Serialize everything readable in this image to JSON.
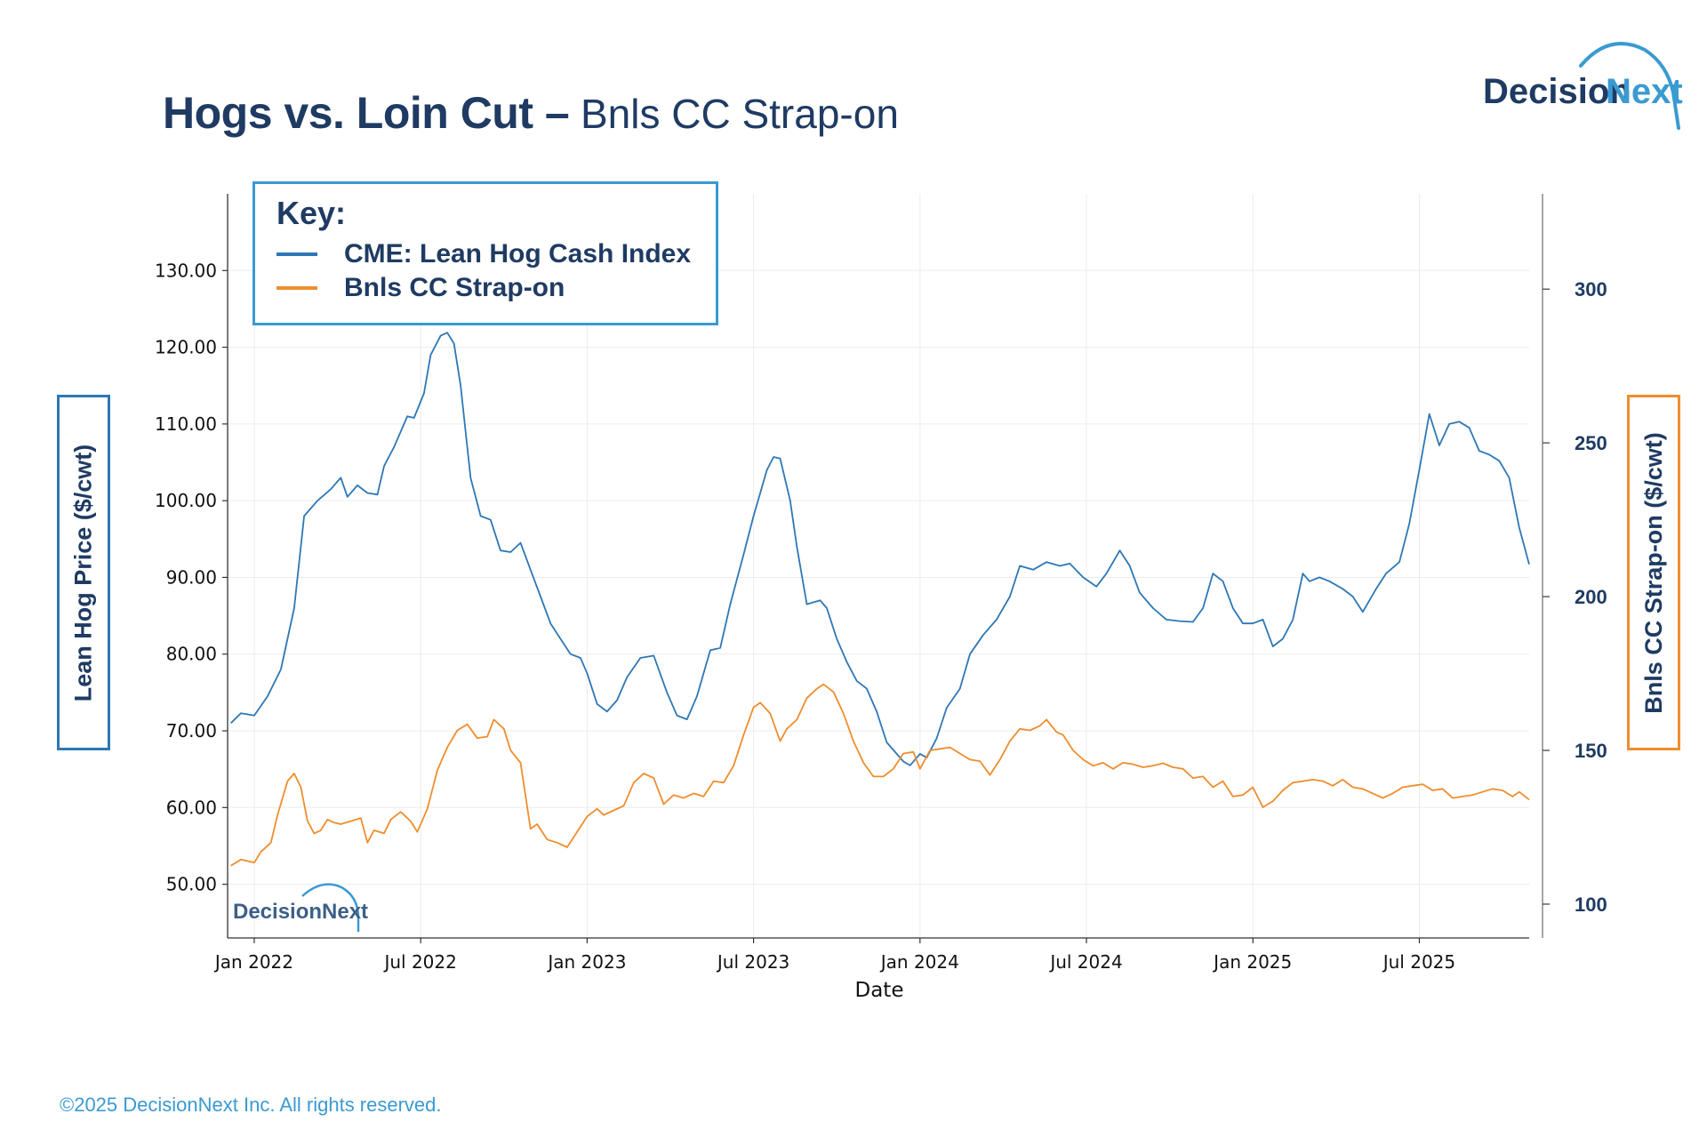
{
  "header": {
    "title_bold": "Hogs vs. Loin Cut –",
    "title_light": " Bnls CC Strap-on",
    "logo_text_dark": "Decision",
    "logo_text_light": "Next"
  },
  "footer": {
    "copyright": "©2025 DecisionNext Inc. All rights reserved."
  },
  "colors": {
    "hog": "#2e77b5",
    "loin": "#ef8d2e",
    "navy": "#1f3b63",
    "accent": "#3a9ad1"
  },
  "chart_data": {
    "type": "line",
    "xlabel": "Date",
    "ylabel_left": "Lean Hog Price  ($/cwt)",
    "ylabel_right": "Bnls CC Strap-on ($/cwt)",
    "x_range": [
      2021.92,
      2025.83
    ],
    "ylim_left": [
      43,
      140
    ],
    "ylim_right": [
      89,
      331
    ],
    "x_ticks": [
      {
        "label": "Jan 2022",
        "x": 2022.0
      },
      {
        "label": "Jul 2022",
        "x": 2022.5
      },
      {
        "label": "Jan 2023",
        "x": 2023.0
      },
      {
        "label": "Jul 2023",
        "x": 2023.5
      },
      {
        "label": "Jan 2024",
        "x": 2024.0
      },
      {
        "label": "Jul 2024",
        "x": 2024.5
      },
      {
        "label": "Jan 2025",
        "x": 2025.0
      },
      {
        "label": "Jul 2025",
        "x": 2025.5
      }
    ],
    "left_ticks": [
      "50.00",
      "60.00",
      "70.00",
      "80.00",
      "90.00",
      "100.00",
      "110.00",
      "120.00",
      "130.00"
    ],
    "right_ticks": [
      "100",
      "150",
      "200",
      "250",
      "300"
    ],
    "legend": {
      "title": "Key:",
      "position": "top-left",
      "entries": [
        "CME: Lean Hog Cash Index",
        "Bnls CC Strap-on"
      ]
    },
    "watermark": "DecisionNext",
    "series": [
      {
        "name": "CME: Lean Hog Cash Index",
        "axis": "left",
        "points": [
          [
            2021.93,
            71
          ],
          [
            2021.96,
            72.3
          ],
          [
            2022.0,
            72
          ],
          [
            2022.04,
            74.5
          ],
          [
            2022.08,
            78
          ],
          [
            2022.12,
            86
          ],
          [
            2022.15,
            98
          ],
          [
            2022.19,
            100
          ],
          [
            2022.23,
            101.5
          ],
          [
            2022.26,
            103
          ],
          [
            2022.28,
            100.5
          ],
          [
            2022.31,
            102
          ],
          [
            2022.34,
            101
          ],
          [
            2022.37,
            100.8
          ],
          [
            2022.39,
            104.5
          ],
          [
            2022.42,
            107
          ],
          [
            2022.44,
            109
          ],
          [
            2022.46,
            111
          ],
          [
            2022.48,
            110.8
          ],
          [
            2022.51,
            114
          ],
          [
            2022.53,
            119
          ],
          [
            2022.56,
            121.5
          ],
          [
            2022.58,
            121.9
          ],
          [
            2022.6,
            120.5
          ],
          [
            2022.62,
            115
          ],
          [
            2022.65,
            103
          ],
          [
            2022.68,
            98
          ],
          [
            2022.71,
            97.5
          ],
          [
            2022.74,
            93.5
          ],
          [
            2022.77,
            93.3
          ],
          [
            2022.8,
            94.5
          ],
          [
            2022.83,
            91
          ],
          [
            2022.86,
            87.5
          ],
          [
            2022.89,
            84
          ],
          [
            2022.92,
            82
          ],
          [
            2022.95,
            80
          ],
          [
            2022.98,
            79.5
          ],
          [
            2023.0,
            77.5
          ],
          [
            2023.03,
            73.5
          ],
          [
            2023.06,
            72.5
          ],
          [
            2023.09,
            74
          ],
          [
            2023.12,
            77
          ],
          [
            2023.16,
            79.5
          ],
          [
            2023.2,
            79.8
          ],
          [
            2023.24,
            75
          ],
          [
            2023.27,
            72
          ],
          [
            2023.3,
            71.5
          ],
          [
            2023.33,
            74.5
          ],
          [
            2023.37,
            80.5
          ],
          [
            2023.4,
            80.8
          ],
          [
            2023.43,
            86.5
          ],
          [
            2023.47,
            93
          ],
          [
            2023.5,
            98
          ],
          [
            2023.54,
            104
          ],
          [
            2023.56,
            105.7
          ],
          [
            2023.58,
            105.5
          ],
          [
            2023.61,
            100
          ],
          [
            2023.63,
            94
          ],
          [
            2023.66,
            86.5
          ],
          [
            2023.7,
            87
          ],
          [
            2023.72,
            86
          ],
          [
            2023.75,
            82
          ],
          [
            2023.78,
            79
          ],
          [
            2023.81,
            76.5
          ],
          [
            2023.84,
            75.5
          ],
          [
            2023.87,
            72.5
          ],
          [
            2023.9,
            68.5
          ],
          [
            2023.93,
            67
          ],
          [
            2023.95,
            66
          ],
          [
            2023.97,
            65.5
          ],
          [
            2024.0,
            67
          ],
          [
            2024.02,
            66.5
          ],
          [
            2024.05,
            69
          ],
          [
            2024.08,
            73
          ],
          [
            2024.12,
            75.5
          ],
          [
            2024.15,
            80
          ],
          [
            2024.19,
            82.5
          ],
          [
            2024.23,
            84.5
          ],
          [
            2024.27,
            87.5
          ],
          [
            2024.3,
            91.5
          ],
          [
            2024.34,
            91
          ],
          [
            2024.38,
            92
          ],
          [
            2024.42,
            91.5
          ],
          [
            2024.45,
            91.8
          ],
          [
            2024.49,
            90
          ],
          [
            2024.53,
            88.8
          ],
          [
            2024.56,
            90.5
          ],
          [
            2024.6,
            93.5
          ],
          [
            2024.63,
            91.5
          ],
          [
            2024.66,
            88
          ],
          [
            2024.7,
            86
          ],
          [
            2024.74,
            84.5
          ],
          [
            2024.78,
            84.3
          ],
          [
            2024.82,
            84.2
          ],
          [
            2024.85,
            86
          ],
          [
            2024.88,
            90.5
          ],
          [
            2024.91,
            89.5
          ],
          [
            2024.94,
            86
          ],
          [
            2024.97,
            84
          ],
          [
            2025.0,
            84
          ],
          [
            2025.03,
            84.5
          ],
          [
            2025.06,
            81
          ],
          [
            2025.09,
            82
          ],
          [
            2025.12,
            84.5
          ],
          [
            2025.15,
            90.5
          ],
          [
            2025.17,
            89.5
          ],
          [
            2025.2,
            90
          ],
          [
            2025.23,
            89.5
          ],
          [
            2025.27,
            88.5
          ],
          [
            2025.3,
            87.5
          ],
          [
            2025.33,
            85.5
          ],
          [
            2025.37,
            88.5
          ],
          [
            2025.4,
            90.5
          ],
          [
            2025.44,
            92
          ],
          [
            2025.47,
            97
          ],
          [
            2025.5,
            104
          ],
          [
            2025.53,
            111.3
          ],
          [
            2025.56,
            107.2
          ],
          [
            2025.59,
            110
          ],
          [
            2025.62,
            110.3
          ],
          [
            2025.65,
            109.5
          ],
          [
            2025.68,
            106.5
          ],
          [
            2025.71,
            106
          ],
          [
            2025.74,
            105.2
          ],
          [
            2025.77,
            103
          ],
          [
            2025.8,
            96.5
          ],
          [
            2025.83,
            91.7
          ]
        ]
      },
      {
        "name": "Bnls CC Strap-on",
        "axis": "right",
        "points": [
          [
            2021.93,
            112.5
          ],
          [
            2021.96,
            114.5
          ],
          [
            2022.0,
            113.5
          ],
          [
            2022.02,
            117
          ],
          [
            2022.05,
            120
          ],
          [
            2022.07,
            129
          ],
          [
            2022.1,
            140
          ],
          [
            2022.12,
            142.5
          ],
          [
            2022.14,
            138
          ],
          [
            2022.16,
            127
          ],
          [
            2022.18,
            123
          ],
          [
            2022.2,
            124
          ],
          [
            2022.22,
            127.5
          ],
          [
            2022.24,
            126.5
          ],
          [
            2022.26,
            126
          ],
          [
            2022.29,
            127
          ],
          [
            2022.32,
            128
          ],
          [
            2022.34,
            120
          ],
          [
            2022.36,
            124
          ],
          [
            2022.39,
            123
          ],
          [
            2022.41,
            127.5
          ],
          [
            2022.44,
            130
          ],
          [
            2022.47,
            127
          ],
          [
            2022.49,
            123.5
          ],
          [
            2022.52,
            131
          ],
          [
            2022.55,
            143.5
          ],
          [
            2022.58,
            151
          ],
          [
            2022.61,
            156.5
          ],
          [
            2022.64,
            158.5
          ],
          [
            2022.67,
            154
          ],
          [
            2022.7,
            154.5
          ],
          [
            2022.72,
            160
          ],
          [
            2022.75,
            157
          ],
          [
            2022.77,
            150
          ],
          [
            2022.8,
            146
          ],
          [
            2022.83,
            124.5
          ],
          [
            2022.85,
            126
          ],
          [
            2022.88,
            121
          ],
          [
            2022.91,
            120
          ],
          [
            2022.94,
            118.5
          ],
          [
            2022.97,
            123.5
          ],
          [
            2023.0,
            128.5
          ],
          [
            2023.03,
            131
          ],
          [
            2023.05,
            129
          ],
          [
            2023.08,
            130.5
          ],
          [
            2023.11,
            132
          ],
          [
            2023.14,
            139.5
          ],
          [
            2023.17,
            142.5
          ],
          [
            2023.2,
            141
          ],
          [
            2023.23,
            132.5
          ],
          [
            2023.26,
            135.5
          ],
          [
            2023.29,
            134.5
          ],
          [
            2023.32,
            136
          ],
          [
            2023.35,
            135
          ],
          [
            2023.38,
            140
          ],
          [
            2023.41,
            139.5
          ],
          [
            2023.44,
            145
          ],
          [
            2023.47,
            155
          ],
          [
            2023.5,
            164
          ],
          [
            2023.52,
            165.5
          ],
          [
            2023.55,
            162
          ],
          [
            2023.58,
            153
          ],
          [
            2023.6,
            157
          ],
          [
            2023.63,
            160
          ],
          [
            2023.66,
            167
          ],
          [
            2023.69,
            170
          ],
          [
            2023.71,
            171.5
          ],
          [
            2023.74,
            169
          ],
          [
            2023.77,
            162
          ],
          [
            2023.8,
            153
          ],
          [
            2023.83,
            146
          ],
          [
            2023.86,
            141.5
          ],
          [
            2023.89,
            141.5
          ],
          [
            2023.92,
            144
          ],
          [
            2023.95,
            149
          ],
          [
            2023.98,
            149.5
          ],
          [
            2024.0,
            144
          ],
          [
            2024.03,
            150
          ],
          [
            2024.06,
            150.5
          ],
          [
            2024.09,
            151
          ],
          [
            2024.12,
            149
          ],
          [
            2024.15,
            147
          ],
          [
            2024.18,
            146.5
          ],
          [
            2024.21,
            142
          ],
          [
            2024.24,
            147
          ],
          [
            2024.27,
            153
          ],
          [
            2024.3,
            157
          ],
          [
            2024.33,
            156.5
          ],
          [
            2024.36,
            158
          ],
          [
            2024.38,
            160
          ],
          [
            2024.41,
            156
          ],
          [
            2024.43,
            155
          ],
          [
            2024.46,
            150
          ],
          [
            2024.49,
            147
          ],
          [
            2024.52,
            145
          ],
          [
            2024.55,
            146
          ],
          [
            2024.58,
            144
          ],
          [
            2024.61,
            146
          ],
          [
            2024.64,
            145.5
          ],
          [
            2024.67,
            144.5
          ],
          [
            2024.7,
            145
          ],
          [
            2024.73,
            145.8
          ],
          [
            2024.76,
            144.5
          ],
          [
            2024.79,
            144
          ],
          [
            2024.82,
            141
          ],
          [
            2024.85,
            141.5
          ],
          [
            2024.88,
            138
          ],
          [
            2024.91,
            140
          ],
          [
            2024.94,
            135
          ],
          [
            2024.97,
            135.5
          ],
          [
            2025.0,
            138
          ],
          [
            2025.03,
            131.5
          ],
          [
            2025.06,
            133.5
          ],
          [
            2025.09,
            137
          ],
          [
            2025.12,
            139.5
          ],
          [
            2025.15,
            140
          ],
          [
            2025.18,
            140.5
          ],
          [
            2025.21,
            140
          ],
          [
            2025.24,
            138.5
          ],
          [
            2025.27,
            140.5
          ],
          [
            2025.3,
            138
          ],
          [
            2025.33,
            137.5
          ],
          [
            2025.36,
            136
          ],
          [
            2025.39,
            134.5
          ],
          [
            2025.42,
            136
          ],
          [
            2025.45,
            138
          ],
          [
            2025.48,
            138.5
          ],
          [
            2025.51,
            139
          ],
          [
            2025.54,
            137
          ],
          [
            2025.57,
            137.5
          ],
          [
            2025.6,
            134.5
          ],
          [
            2025.63,
            135
          ],
          [
            2025.66,
            135.5
          ],
          [
            2025.69,
            136.5
          ],
          [
            2025.72,
            137.5
          ],
          [
            2025.75,
            137
          ],
          [
            2025.78,
            135
          ],
          [
            2025.8,
            136.5
          ],
          [
            2025.83,
            134
          ]
        ]
      }
    ]
  }
}
